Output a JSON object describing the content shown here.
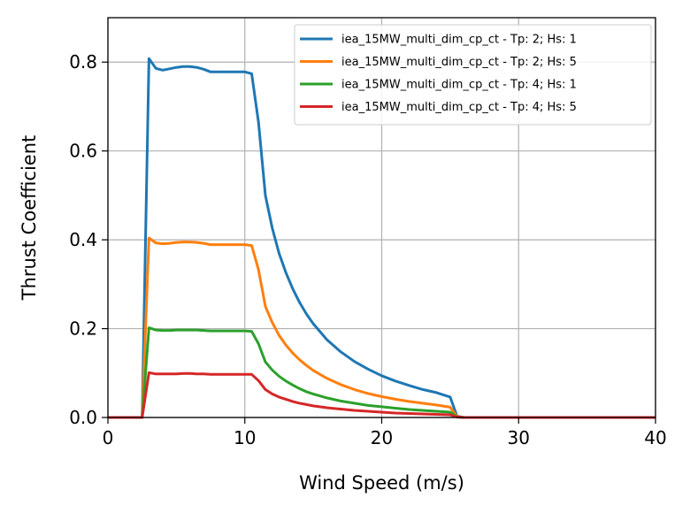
{
  "chart_data": {
    "type": "line",
    "xlabel": "Wind Speed (m/s)",
    "ylabel": "Thrust Coefficient",
    "xlim": [
      0,
      40
    ],
    "ylim": [
      0,
      0.9
    ],
    "xticks": [
      0,
      10,
      20,
      30,
      40
    ],
    "xtick_labels": [
      "0",
      "10",
      "20",
      "30",
      "40"
    ],
    "yticks": [
      0,
      0.2,
      0.4,
      0.6,
      0.8
    ],
    "ytick_labels": [
      "0.0",
      "0.2",
      "0.4",
      "0.6",
      "0.8"
    ],
    "grid": true,
    "legend_position": "top-right",
    "x": [
      0,
      2.5,
      3,
      3.5,
      4,
      4.5,
      5,
      5.5,
      6,
      6.5,
      7,
      7.5,
      8,
      8.5,
      9,
      9.5,
      10,
      10.5,
      11,
      11.5,
      12,
      12.5,
      13,
      13.5,
      14,
      14.5,
      15,
      16,
      17,
      18,
      19,
      20,
      21,
      22,
      23,
      24,
      25,
      25.5,
      26,
      30,
      40
    ],
    "series": [
      {
        "name": "iea_15MW_multi_dim_cp_ct - Tp: 2; Hs: 1",
        "color": "#1f77b4",
        "values": [
          0,
          0,
          0.808,
          0.786,
          0.782,
          0.785,
          0.788,
          0.79,
          0.79,
          0.788,
          0.784,
          0.778,
          0.778,
          0.778,
          0.778,
          0.778,
          0.778,
          0.774,
          0.665,
          0.5,
          0.427,
          0.37,
          0.326,
          0.29,
          0.259,
          0.233,
          0.211,
          0.175,
          0.148,
          0.126,
          0.109,
          0.094,
          0.082,
          0.072,
          0.063,
          0.056,
          0.046,
          0.003,
          0,
          0,
          0
        ]
      },
      {
        "name": "iea_15MW_multi_dim_cp_ct - Tp: 2; Hs: 5",
        "color": "#ff7f0e",
        "values": [
          0,
          0,
          0.404,
          0.393,
          0.391,
          0.392,
          0.394,
          0.395,
          0.395,
          0.394,
          0.392,
          0.389,
          0.389,
          0.389,
          0.389,
          0.389,
          0.389,
          0.387,
          0.333,
          0.25,
          0.214,
          0.185,
          0.163,
          0.145,
          0.13,
          0.117,
          0.106,
          0.088,
          0.074,
          0.063,
          0.054,
          0.047,
          0.041,
          0.036,
          0.032,
          0.028,
          0.023,
          0.002,
          0,
          0,
          0
        ]
      },
      {
        "name": "iea_15MW_multi_dim_cp_ct - Tp: 4; Hs: 1",
        "color": "#2ca02c",
        "values": [
          0,
          0,
          0.202,
          0.197,
          0.196,
          0.196,
          0.197,
          0.197,
          0.197,
          0.197,
          0.196,
          0.195,
          0.195,
          0.195,
          0.195,
          0.195,
          0.195,
          0.194,
          0.166,
          0.125,
          0.107,
          0.093,
          0.082,
          0.073,
          0.065,
          0.058,
          0.053,
          0.044,
          0.037,
          0.032,
          0.027,
          0.024,
          0.021,
          0.018,
          0.016,
          0.014,
          0.012,
          0.001,
          0,
          0,
          0
        ]
      },
      {
        "name": "iea_15MW_multi_dim_cp_ct - Tp: 4; Hs: 5",
        "color": "#d62728",
        "values": [
          0,
          0,
          0.101,
          0.098,
          0.098,
          0.098,
          0.098,
          0.099,
          0.099,
          0.098,
          0.098,
          0.097,
          0.097,
          0.097,
          0.097,
          0.097,
          0.097,
          0.097,
          0.083,
          0.063,
          0.053,
          0.046,
          0.041,
          0.036,
          0.032,
          0.029,
          0.026,
          0.022,
          0.019,
          0.016,
          0.014,
          0.012,
          0.01,
          0.009,
          0.008,
          0.007,
          0.006,
          0.001,
          0,
          0,
          0
        ]
      }
    ]
  }
}
